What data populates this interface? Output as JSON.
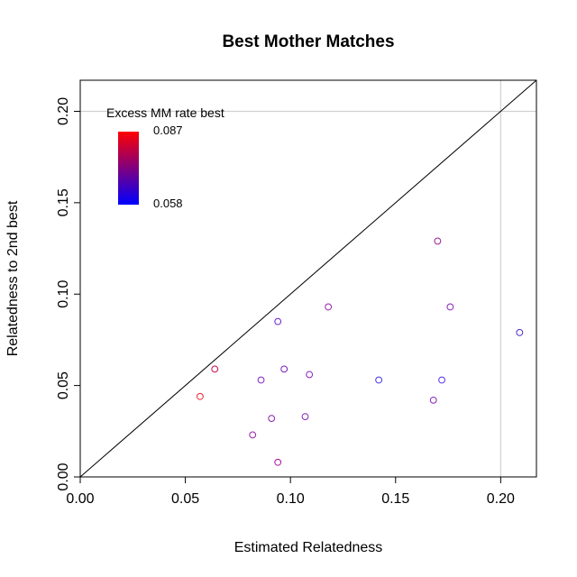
{
  "chart_data": {
    "type": "scatter",
    "title": "Best Mother Matches",
    "xlabel": "Estimated Relatedness",
    "ylabel": "Relatedness to 2nd best",
    "xlim": [
      0,
      0.217
    ],
    "ylim": [
      0,
      0.217
    ],
    "x_ticks": [
      "0.00",
      "0.05",
      "0.10",
      "0.15",
      "0.20"
    ],
    "y_ticks": [
      "0.00",
      "0.05",
      "0.10",
      "0.15",
      "0.20"
    ],
    "reference_lines": {
      "diagonal": "y = x",
      "vertical_x": 0.2,
      "horizontal_y": 0.2
    },
    "colorbar": {
      "title": "Excess MM rate best",
      "max_label": "0.087",
      "min_label": "0.058",
      "low_color": "#0000ff",
      "high_color": "#ff0000",
      "placement": "top-left"
    },
    "points": [
      {
        "x": 0.057,
        "y": 0.044,
        "color": "#ee2233"
      },
      {
        "x": 0.064,
        "y": 0.059,
        "color": "#cc1155"
      },
      {
        "x": 0.082,
        "y": 0.023,
        "color": "#9922aa"
      },
      {
        "x": 0.086,
        "y": 0.053,
        "color": "#8822bb"
      },
      {
        "x": 0.091,
        "y": 0.032,
        "color": "#8822aa"
      },
      {
        "x": 0.094,
        "y": 0.085,
        "color": "#6622cc"
      },
      {
        "x": 0.094,
        "y": 0.008,
        "color": "#aa1199"
      },
      {
        "x": 0.097,
        "y": 0.059,
        "color": "#7722bb"
      },
      {
        "x": 0.107,
        "y": 0.033,
        "color": "#8822bb"
      },
      {
        "x": 0.109,
        "y": 0.056,
        "color": "#8822bb"
      },
      {
        "x": 0.118,
        "y": 0.093,
        "color": "#9922aa"
      },
      {
        "x": 0.142,
        "y": 0.053,
        "color": "#4433dd"
      },
      {
        "x": 0.168,
        "y": 0.042,
        "color": "#8822bb"
      },
      {
        "x": 0.17,
        "y": 0.129,
        "color": "#992299"
      },
      {
        "x": 0.172,
        "y": 0.053,
        "color": "#5533dd"
      },
      {
        "x": 0.176,
        "y": 0.093,
        "color": "#8822bb"
      },
      {
        "x": 0.209,
        "y": 0.079,
        "color": "#5533cc"
      }
    ]
  }
}
